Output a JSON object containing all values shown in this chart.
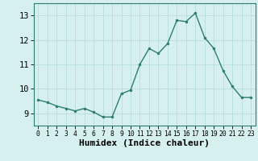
{
  "x": [
    0,
    1,
    2,
    3,
    4,
    5,
    6,
    7,
    8,
    9,
    10,
    11,
    12,
    13,
    14,
    15,
    16,
    17,
    18,
    19,
    20,
    21,
    22,
    23
  ],
  "y": [
    9.55,
    9.45,
    9.3,
    9.2,
    9.1,
    9.2,
    9.05,
    8.85,
    8.85,
    9.8,
    9.95,
    11.0,
    11.65,
    11.45,
    11.85,
    12.8,
    12.75,
    13.1,
    12.1,
    11.65,
    10.75,
    10.1,
    9.65,
    9.65
  ],
  "line_color": "#2e7d6e",
  "marker": "o",
  "marker_size": 2.0,
  "line_width": 1.0,
  "bg_color": "#d6f0ef",
  "grid_color": "#b8dcdc",
  "xlabel": "Humidex (Indice chaleur)",
  "xlabel_fontsize": 8,
  "xlabel_fontweight": "bold",
  "yticks": [
    9,
    10,
    11,
    12,
    13
  ],
  "ylim": [
    8.5,
    13.5
  ],
  "xlim": [
    -0.5,
    23.5
  ],
  "ytick_fontsize": 7.5,
  "xtick_fontsize": 5.8
}
